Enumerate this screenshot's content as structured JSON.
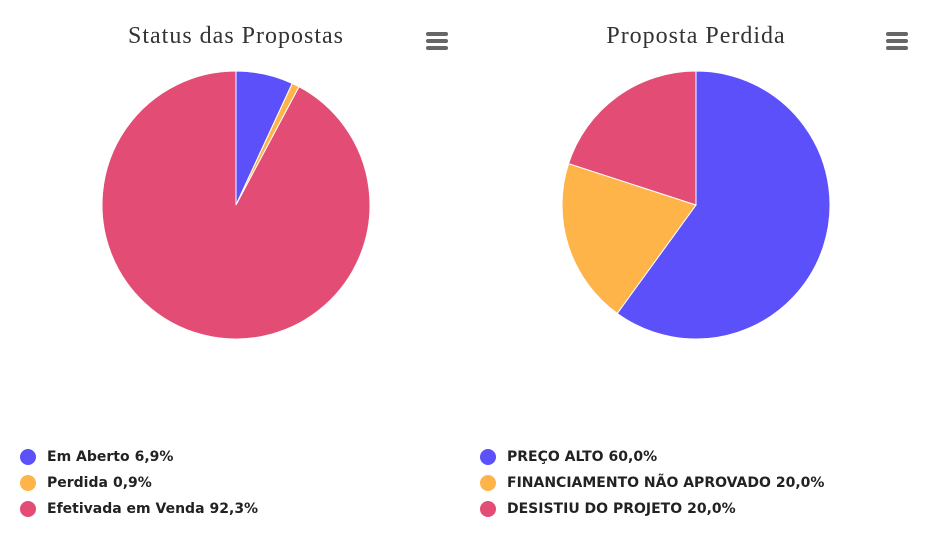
{
  "chart_data": [
    {
      "type": "pie",
      "title": "Status das Propostas",
      "categories": [
        "Em Aberto",
        "Perdida",
        "Efetivada em Venda"
      ],
      "values": [
        6.9,
        0.9,
        92.3
      ],
      "value_labels": [
        "6,9%",
        "0,9%",
        "92,3%"
      ],
      "colors": [
        "#5c50fa",
        "#feb448",
        "#e34c74"
      ]
    },
    {
      "type": "pie",
      "title": "Proposta Perdida",
      "categories": [
        "PREÇO ALTO",
        "FINANCIAMENTO NÃO APROVADO",
        "DESISTIU DO PROJETO"
      ],
      "values": [
        60.0,
        20.0,
        20.0
      ],
      "value_labels": [
        "60,0%",
        "20,0%",
        "20,0%"
      ],
      "colors": [
        "#5c50fa",
        "#feb448",
        "#e34c74"
      ]
    }
  ]
}
